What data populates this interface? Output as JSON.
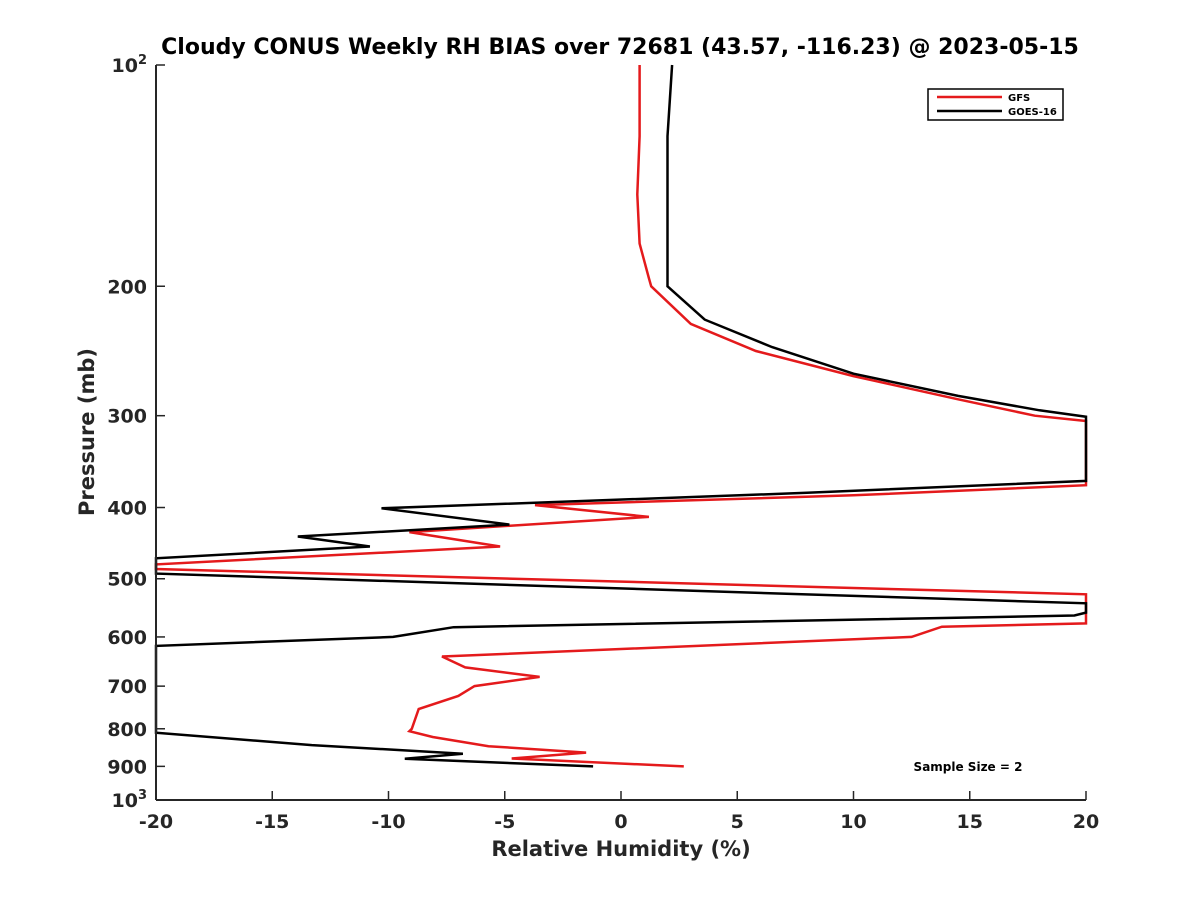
{
  "chart_data": {
    "type": "line",
    "title": "Cloudy CONUS Weekly RH BIAS over 72681 (43.57, -116.23) @ 2023-05-15",
    "xlabel": "Relative Humidity (%)",
    "ylabel": "Pressure (mb)",
    "xlim": [
      -20,
      20
    ],
    "ylim": [
      100,
      1000
    ],
    "yscale": "log",
    "y_reversed": true,
    "x_ticks": [
      "-20",
      "-15",
      "-10",
      "-5",
      "0",
      "5",
      "10",
      "15",
      "20"
    ],
    "y_ticks": [
      {
        "value": 100,
        "base": "10",
        "exp": "2"
      },
      {
        "value": 200,
        "label": "200"
      },
      {
        "value": 300,
        "label": "300"
      },
      {
        "value": 400,
        "label": "400"
      },
      {
        "value": 500,
        "label": "500"
      },
      {
        "value": 600,
        "label": "600"
      },
      {
        "value": 700,
        "label": "700"
      },
      {
        "value": 800,
        "label": "800"
      },
      {
        "value": 900,
        "label": "900"
      },
      {
        "value": 1000,
        "base": "10",
        "exp": "3"
      }
    ],
    "grid": false,
    "legend_position": "top-right",
    "series": [
      {
        "name": "GFS",
        "color": "#e41a1c",
        "points": [
          [
            0.8,
            100
          ],
          [
            0.8,
            125
          ],
          [
            0.7,
            150
          ],
          [
            0.8,
            175
          ],
          [
            1.2,
            195
          ],
          [
            1.3,
            200
          ],
          [
            3.0,
            225
          ],
          [
            5.8,
            245
          ],
          [
            10.0,
            265
          ],
          [
            14.5,
            285
          ],
          [
            17.8,
            300
          ],
          [
            20,
            305
          ],
          [
            20,
            373
          ],
          [
            10,
            385
          ],
          [
            -3.7,
            397
          ],
          [
            1.2,
            412
          ],
          [
            -9.1,
            432
          ],
          [
            -5.2,
            452
          ],
          [
            -20,
            478
          ],
          [
            -20,
            485
          ],
          [
            20,
            525
          ],
          [
            20,
            575
          ],
          [
            13.8,
            581
          ],
          [
            12.5,
            600
          ],
          [
            -7.7,
            638
          ],
          [
            -6.7,
            660
          ],
          [
            -3.5,
            680
          ],
          [
            -6.3,
            700
          ],
          [
            -7.0,
            722
          ],
          [
            -8.7,
            752
          ],
          [
            -9.0,
            800
          ],
          [
            -9.1,
            806
          ],
          [
            -8.1,
            821
          ],
          [
            -5.7,
            845
          ],
          [
            -1.5,
            862
          ],
          [
            -4.7,
            878
          ],
          [
            2.7,
            900
          ]
        ]
      },
      {
        "name": "GOES-16",
        "color": "#000000",
        "points": [
          [
            2.2,
            100
          ],
          [
            2.0,
            125
          ],
          [
            2.0,
            150
          ],
          [
            2.0,
            175
          ],
          [
            2.0,
            195
          ],
          [
            2.0,
            200
          ],
          [
            3.6,
            222
          ],
          [
            6.5,
            242
          ],
          [
            10.0,
            263
          ],
          [
            14.5,
            282
          ],
          [
            18.0,
            295
          ],
          [
            20,
            301
          ],
          [
            20,
            368
          ],
          [
            8.0,
            382
          ],
          [
            -10.3,
            401
          ],
          [
            -4.8,
            422
          ],
          [
            -13.9,
            438
          ],
          [
            -10.8,
            452
          ],
          [
            -20,
            469
          ],
          [
            -20,
            492
          ],
          [
            20,
            540
          ],
          [
            20,
            556
          ],
          [
            19.5,
            561
          ],
          [
            -7.2,
            582
          ],
          [
            -9.8,
            600
          ],
          [
            -20,
            617
          ],
          [
            -20,
            810
          ],
          [
            -13.3,
            842
          ],
          [
            -6.8,
            865
          ],
          [
            -9.3,
            879
          ],
          [
            -1.2,
            900
          ]
        ]
      }
    ],
    "annotation": "Sample Size = 2"
  }
}
